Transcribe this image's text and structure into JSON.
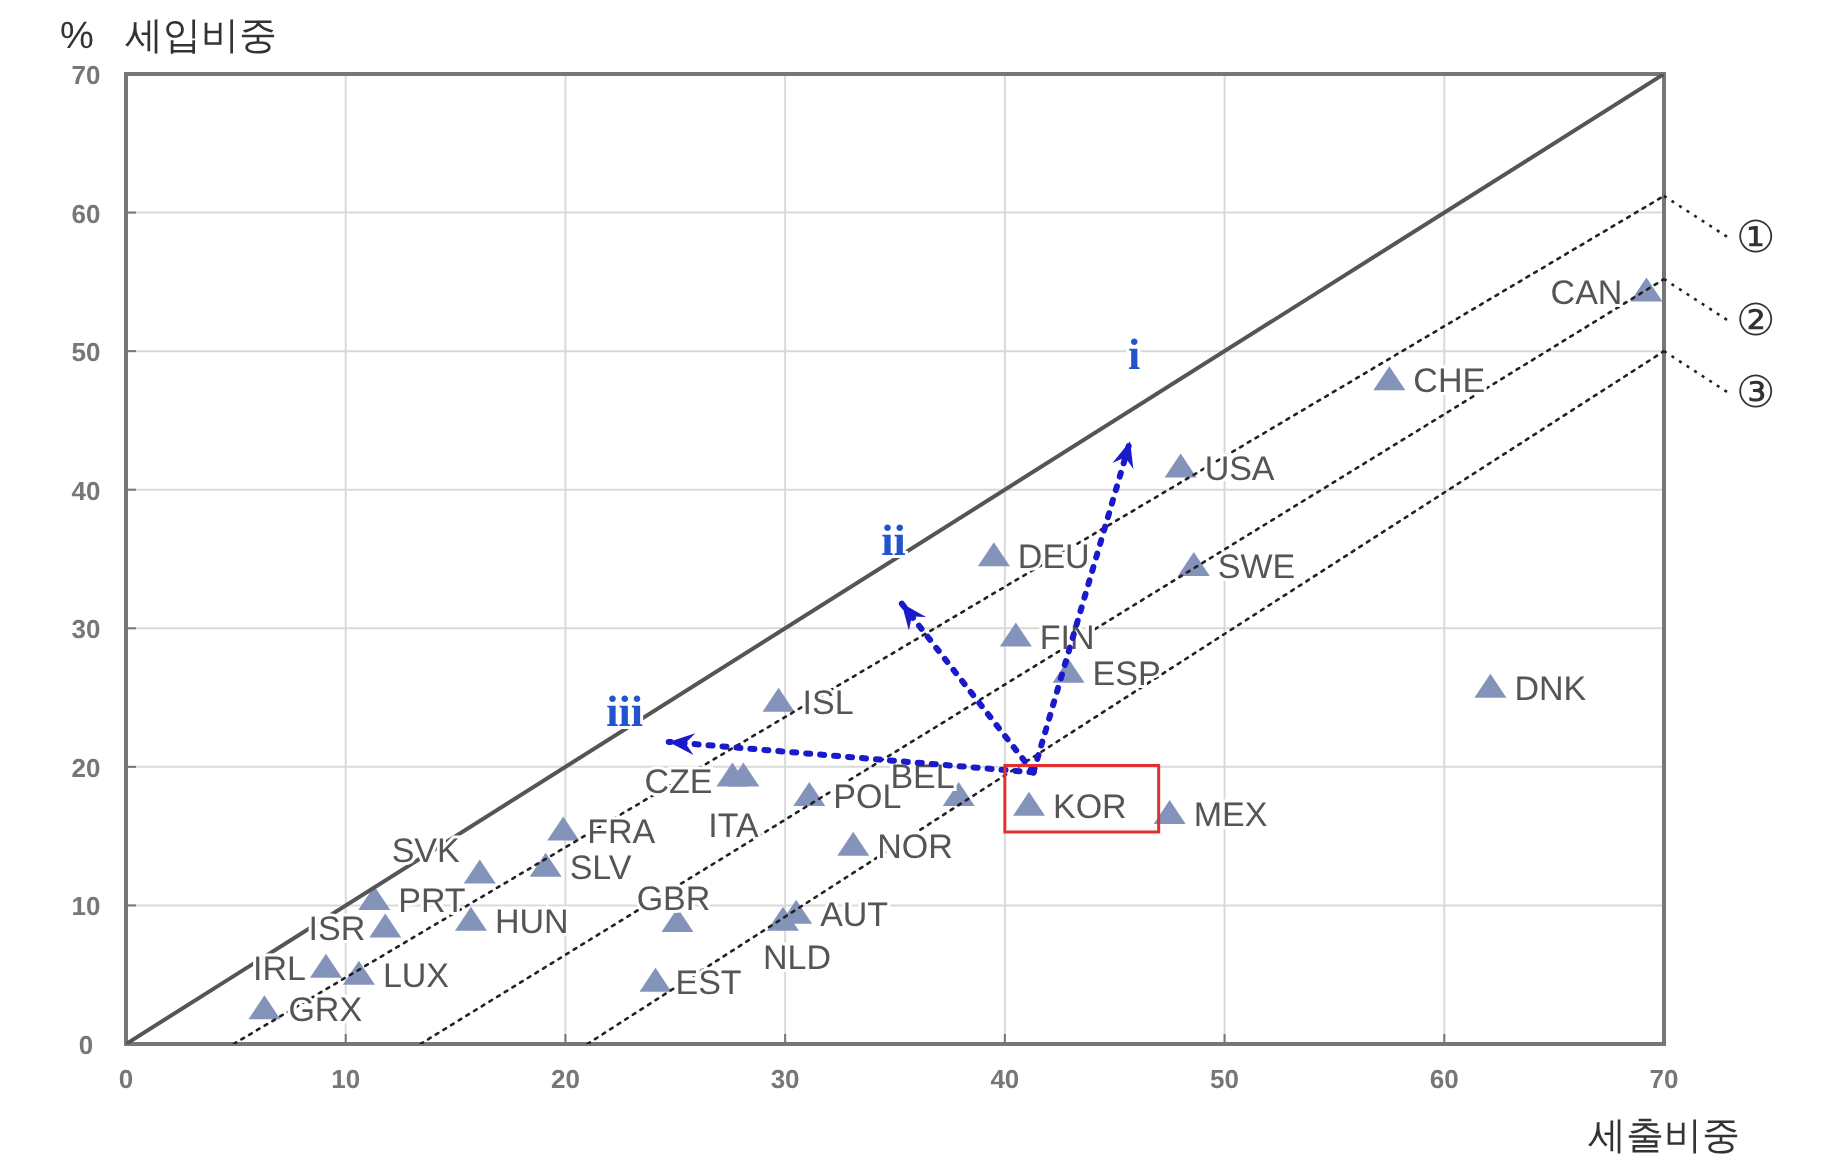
{
  "chart_data": {
    "type": "scatter",
    "xlabel": "세출비중",
    "ylabel": "%   세입비중",
    "xlim": [
      0,
      70
    ],
    "ylim": [
      0,
      70
    ],
    "xticks": [
      0,
      10,
      20,
      30,
      40,
      50,
      60,
      70
    ],
    "yticks": [
      0,
      10,
      20,
      30,
      40,
      50,
      60,
      70
    ],
    "grid": true,
    "legend": "right",
    "series": [
      {
        "type": "scatter",
        "color": "#8393ba",
        "marker": "triangle",
        "x": [
          69.2,
          57.5,
          48.0,
          48.6,
          62.1,
          39.5,
          40.5,
          42.9,
          29.7,
          27.6,
          28.1,
          31.1,
          37.9,
          41.1,
          47.5,
          33.1,
          30.5,
          29.9,
          25.1,
          24.1,
          16.1,
          19.9,
          19.1,
          11.3,
          11.8,
          15.7,
          9.1,
          10.6,
          6.3
        ],
        "values": [
          54.3,
          47.9,
          41.6,
          34.5,
          25.7,
          35.2,
          29.4,
          26.8,
          24.7,
          19.3,
          19.3,
          17.9,
          17.9,
          17.2,
          16.6,
          14.3,
          9.4,
          8.9,
          8.8,
          4.5,
          12.3,
          15.4,
          12.8,
          10.4,
          8.4,
          8.9,
          5.5,
          5.0,
          2.5
        ]
      },
      {
        "type": "line",
        "color": "#555555",
        "line_style": "solid",
        "x": [
          0,
          70
        ],
        "values": [
          0,
          70
        ]
      },
      {
        "type": "line",
        "name": "①",
        "color": "#222222",
        "line_style": "dotted",
        "x": [
          4.9,
          70
        ],
        "values": [
          0,
          61.2
        ]
      },
      {
        "type": "line",
        "name": "②",
        "color": "#222222",
        "line_style": "dotted",
        "x": [
          13.4,
          70
        ],
        "values": [
          0,
          55.2
        ]
      },
      {
        "type": "line",
        "name": "③",
        "color": "#222222",
        "line_style": "dotted",
        "x": [
          21.0,
          70
        ],
        "values": [
          0,
          50.0
        ]
      }
    ],
    "annotations": [
      {
        "text": "CAN",
        "x": 69.2,
        "y": 54.3
      },
      {
        "text": "CHE",
        "x": 57.5,
        "y": 47.9
      },
      {
        "text": "USA",
        "x": 48.0,
        "y": 41.6
      },
      {
        "text": "SWE",
        "x": 48.6,
        "y": 34.5
      },
      {
        "text": "DNK",
        "x": 62.1,
        "y": 25.7
      },
      {
        "text": "DEU",
        "x": 39.5,
        "y": 35.2
      },
      {
        "text": "FIN",
        "x": 40.5,
        "y": 29.4
      },
      {
        "text": "ESP",
        "x": 42.9,
        "y": 26.8
      },
      {
        "text": "ISL",
        "x": 29.7,
        "y": 24.7
      },
      {
        "text": "CZE",
        "x": 27.6,
        "y": 19.3
      },
      {
        "text": "ITA",
        "x": 28.1,
        "y": 19.3
      },
      {
        "text": "POL",
        "x": 31.1,
        "y": 17.9
      },
      {
        "text": "BEL",
        "x": 37.9,
        "y": 17.9
      },
      {
        "text": "KOR",
        "x": 41.1,
        "y": 17.2
      },
      {
        "text": "MEX",
        "x": 47.5,
        "y": 16.6
      },
      {
        "text": "NOR",
        "x": 33.1,
        "y": 14.3
      },
      {
        "text": "AUT",
        "x": 30.5,
        "y": 9.4
      },
      {
        "text": "NLD",
        "x": 29.9,
        "y": 8.9
      },
      {
        "text": "GBR",
        "x": 25.1,
        "y": 8.8
      },
      {
        "text": "EST",
        "x": 24.1,
        "y": 4.5
      },
      {
        "text": "SVK",
        "x": 16.1,
        "y": 12.3
      },
      {
        "text": "FRA",
        "x": 19.9,
        "y": 15.4
      },
      {
        "text": "SLV",
        "x": 19.1,
        "y": 12.8
      },
      {
        "text": "PRT",
        "x": 11.3,
        "y": 10.4
      },
      {
        "text": "ISR",
        "x": 11.8,
        "y": 8.4
      },
      {
        "text": "HUN",
        "x": 15.7,
        "y": 8.9
      },
      {
        "text": "IRL",
        "x": 9.1,
        "y": 5.5
      },
      {
        "text": "LUX",
        "x": 10.6,
        "y": 5.0
      },
      {
        "text": "GRX",
        "x": 6.3,
        "y": 2.5
      },
      "i",
      "ii",
      "iii"
    ]
  }
}
